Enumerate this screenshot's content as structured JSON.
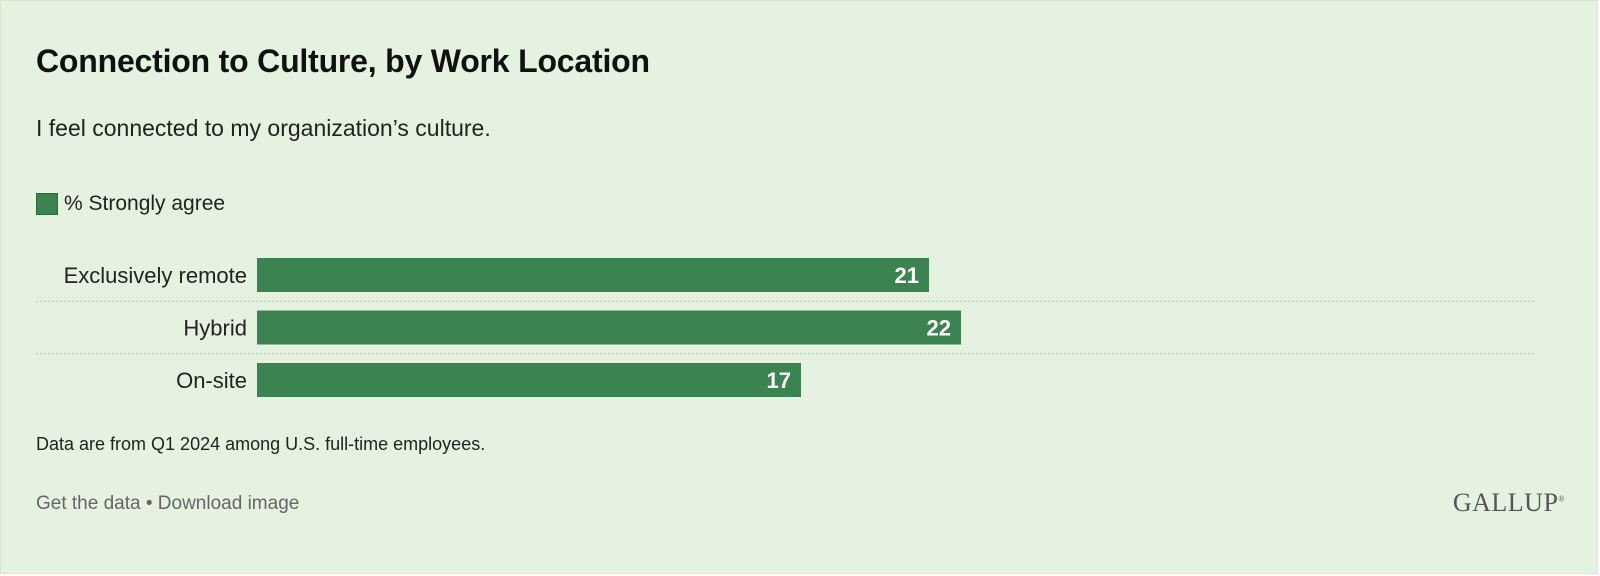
{
  "title": "Connection to Culture, by Work Location",
  "subtitle": "I feel connected to my organization’s culture.",
  "footer": {
    "note": "Data are from Q1 2024 among U.S. full-time employees.",
    "get_data": "Get the data",
    "separator": " • ",
    "download": "Download image",
    "brand": "GALLUP",
    "brand_mark": "®"
  },
  "colors": {
    "background": "#e6f2e0",
    "bar": "#3b8452",
    "bar_text": "#ffffff",
    "divider": "#b9c6b3"
  },
  "chart_data": {
    "type": "bar",
    "orientation": "horizontal",
    "categories": [
      "Exclusively remote",
      "Hybrid",
      "On-site"
    ],
    "series": [
      {
        "name": "% Strongly agree",
        "values": [
          21,
          22,
          17
        ]
      }
    ],
    "xlim": [
      0,
      40
    ],
    "grid": false,
    "legend": "top-left",
    "data_labels": true
  }
}
